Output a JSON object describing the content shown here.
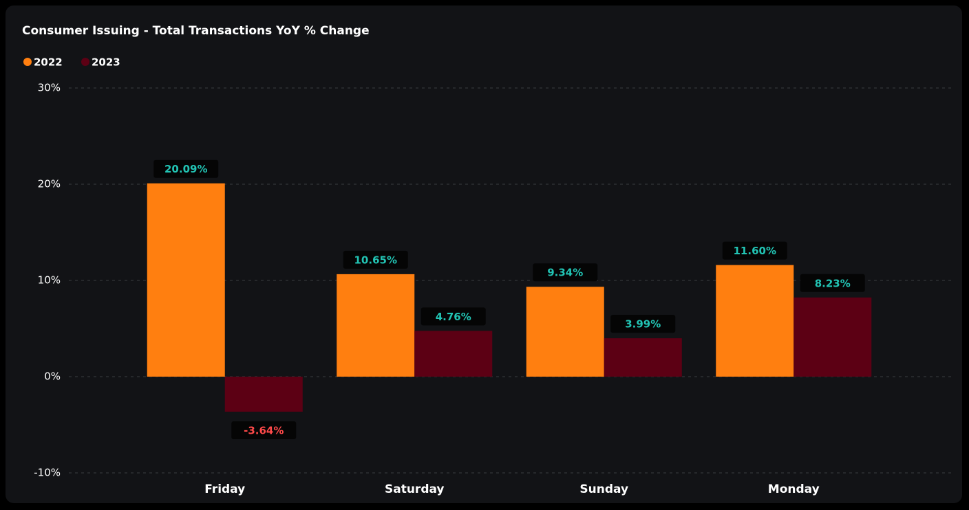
{
  "chart_data": {
    "type": "bar",
    "title": "Consumer Issuing - Total Transactions YoY % Change",
    "categories": [
      "Friday",
      "Saturday",
      "Sunday",
      "Monday"
    ],
    "series": [
      {
        "name": "2022",
        "color": "#ff7f10",
        "values": [
          20.09,
          10.65,
          9.34,
          11.6
        ],
        "value_labels": [
          "20.09%",
          "10.65%",
          "9.34%",
          "11.60%"
        ]
      },
      {
        "name": "2023",
        "color": "#5c0014",
        "values": [
          -3.64,
          4.76,
          3.99,
          8.23
        ],
        "value_labels": [
          "-3.64%",
          "4.76%",
          "3.99%",
          "8.23%"
        ]
      }
    ],
    "ylim": [
      -10,
      30
    ],
    "yticks": [
      {
        "value": -10,
        "label": "-10%"
      },
      {
        "value": 0,
        "label": "0%"
      },
      {
        "value": 10,
        "label": "10%"
      },
      {
        "value": 20,
        "label": "20%"
      },
      {
        "value": 30,
        "label": "30%"
      }
    ],
    "grid": true,
    "legend": "top-left",
    "label_color": "#22c4b4",
    "negative_label_color": "#ff4a4a"
  }
}
